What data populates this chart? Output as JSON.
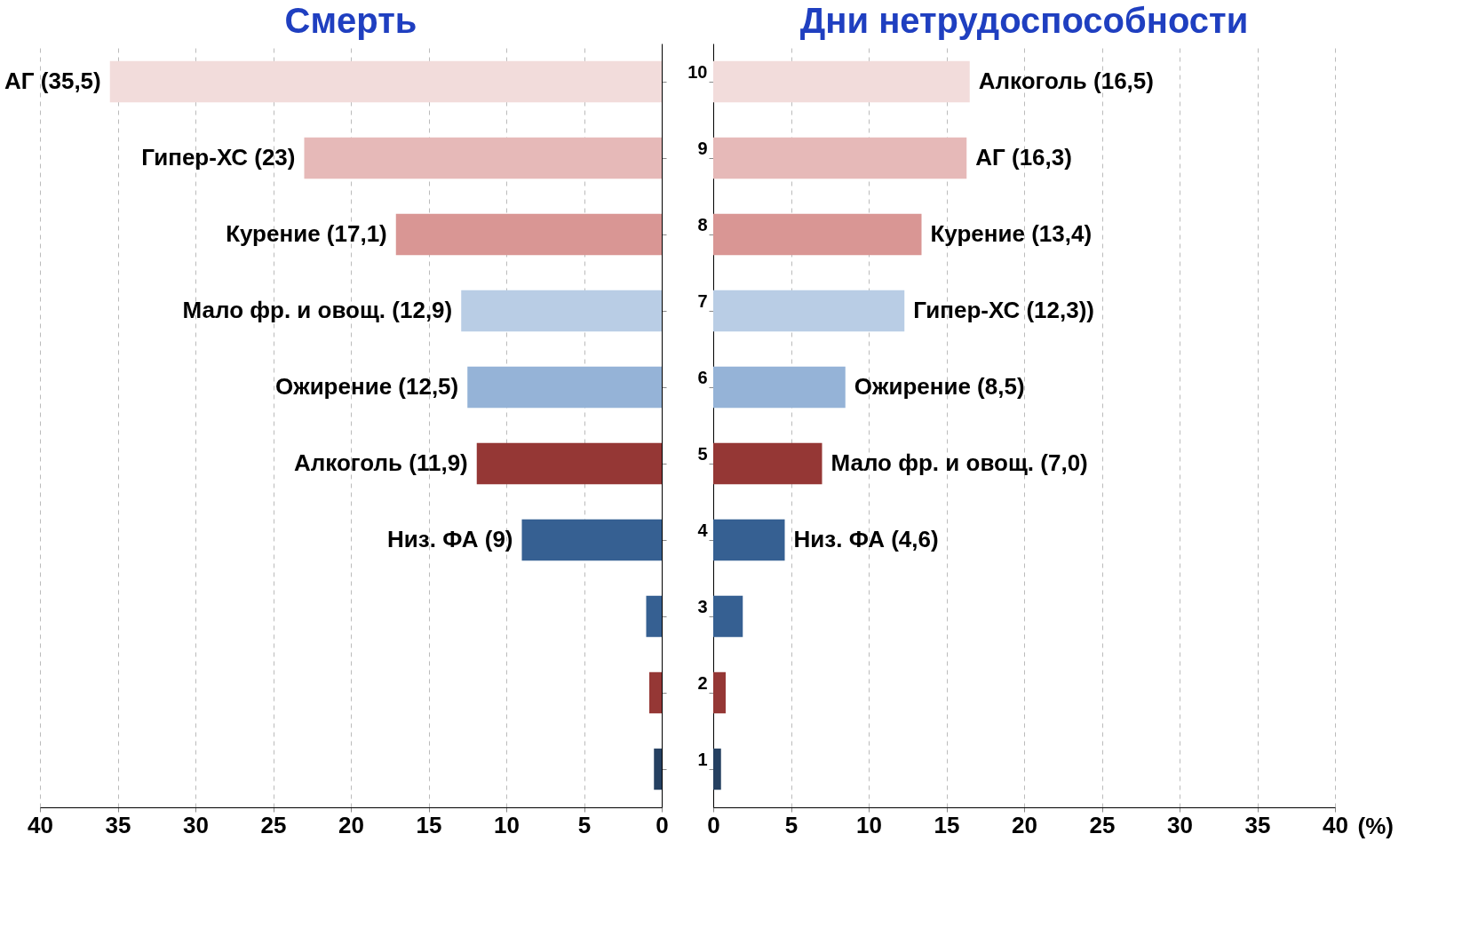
{
  "chart_data": [
    {
      "type": "bar",
      "orientation": "horizontal",
      "title": "Смерть",
      "categories": [
        "10",
        "9",
        "8",
        "7",
        "6",
        "5",
        "4",
        "3",
        "2",
        "1"
      ],
      "values": [
        35.5,
        23,
        17.1,
        12.9,
        12.5,
        11.9,
        9,
        1,
        0.8,
        0.5
      ],
      "colors": [
        "#f2dcdb",
        "#e6b9b8",
        "#d99694",
        "#b9cde5",
        "#95b3d7",
        "#953735",
        "#366092",
        "#366092",
        "#953735",
        "#254061"
      ],
      "value_labels": [
        "АГ (35,5)",
        "Гипер-ХС (23)",
        "Курение (17,1)",
        "Мало фр. и овощ.  (12,9)",
        "Ожирение (12,5)",
        "Алкоголь (11,9)",
        "Низ. ФА (9)",
        null,
        null,
        null
      ],
      "xlim": [
        40,
        0
      ],
      "xticks": [
        40,
        35,
        30,
        25,
        20,
        15,
        10,
        5,
        0
      ],
      "grid": "x",
      "tick_labels": "x"
    },
    {
      "type": "bar",
      "orientation": "horizontal",
      "title": "Дни нетрудоспособности",
      "categories": [
        "10",
        "9",
        "8",
        "7",
        "6",
        "5",
        "4",
        "3",
        "2",
        "1"
      ],
      "values": [
        16.5,
        16.3,
        13.4,
        12.3,
        8.5,
        7.0,
        4.6,
        1.9,
        0.8,
        0.5
      ],
      "colors": [
        "#f2dcdb",
        "#e6b9b8",
        "#d99694",
        "#b9cde5",
        "#95b3d7",
        "#953735",
        "#366092",
        "#366092",
        "#953735",
        "#254061"
      ],
      "value_labels": [
        "Алкоголь (16,5)",
        "АГ (16,3)",
        "Курение (13,4)",
        "Гипер-ХС (12,3))",
        "Ожирение (8,5)",
        "Мало фр. и овощ. (7,0)",
        "Низ. ФА (4,6)",
        null,
        null,
        null
      ],
      "xlim": [
        0,
        40
      ],
      "xticks": [
        0,
        5,
        10,
        15,
        20,
        25,
        30,
        35,
        40
      ],
      "xlabel": "(%)",
      "grid": "x"
    }
  ]
}
